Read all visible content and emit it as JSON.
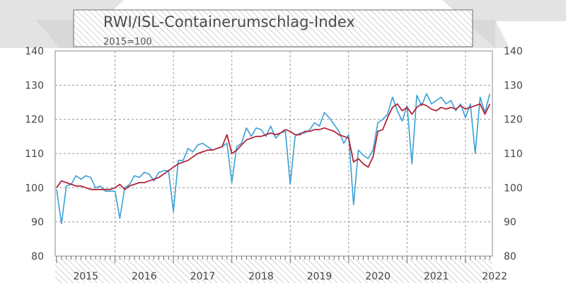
{
  "chart_data": {
    "type": "line",
    "title": "RWI/ISL-Containerumschlag-Index",
    "subtitle": "2015=100",
    "ylim": [
      80,
      140
    ],
    "yticks": [
      80,
      90,
      100,
      110,
      120,
      130,
      140
    ],
    "x_start": "2015-01",
    "year_labels": [
      "2015",
      "2016",
      "2017",
      "2018",
      "2019",
      "2020",
      "2021",
      "2022"
    ],
    "grid": true,
    "colors": {
      "raw": "#3aa0d6",
      "trend": "#b0253a"
    },
    "series": [
      {
        "key": "raw",
        "values": [
          99.5,
          89.5,
          100.5,
          101.0,
          103.5,
          102.5,
          103.5,
          103.0,
          100.0,
          100.5,
          99.0,
          99.0,
          99.0,
          91.0,
          100.0,
          101.0,
          103.5,
          103.0,
          104.5,
          104.0,
          102.0,
          104.5,
          105.0,
          105.0,
          93.0,
          108.0,
          108.0,
          111.5,
          110.5,
          112.5,
          113.0,
          112.0,
          111.0,
          111.5,
          112.0,
          113.0,
          101.5,
          112.0,
          113.0,
          117.5,
          115.0,
          117.5,
          117.0,
          115.0,
          118.0,
          114.5,
          116.0,
          116.5,
          101.0,
          115.0,
          116.0,
          116.0,
          117.0,
          119.0,
          118.0,
          122.0,
          120.5,
          118.5,
          116.5,
          113.0,
          115.5,
          95.0,
          111.0,
          109.5,
          108.5,
          111.0,
          119.0,
          120.0,
          121.5,
          126.5,
          122.5,
          119.5,
          124.0,
          107.0,
          127.0,
          124.0,
          127.5,
          124.5,
          125.5,
          126.5,
          124.5,
          125.5,
          122.5,
          124.5,
          120.5,
          124.5,
          110.0,
          126.5,
          122.0,
          127.5
        ]
      },
      {
        "key": "trend",
        "values": [
          100.0,
          102.0,
          101.5,
          101.0,
          100.5,
          100.5,
          100.0,
          99.5,
          99.5,
          99.5,
          99.5,
          99.5,
          100.0,
          101.0,
          99.5,
          100.5,
          101.0,
          101.5,
          101.5,
          102.0,
          102.5,
          103.0,
          104.0,
          105.0,
          106.0,
          107.0,
          107.5,
          108.0,
          109.0,
          110.0,
          110.5,
          111.0,
          111.0,
          111.5,
          112.0,
          115.5,
          110.0,
          111.0,
          112.5,
          114.0,
          114.5,
          115.0,
          115.0,
          115.5,
          116.0,
          115.5,
          116.0,
          117.0,
          116.5,
          115.5,
          115.5,
          116.5,
          116.5,
          117.0,
          117.0,
          117.5,
          117.0,
          116.5,
          115.5,
          115.0,
          114.5,
          107.5,
          108.5,
          107.0,
          106.0,
          109.0,
          116.5,
          117.0,
          120.5,
          123.5,
          124.5,
          122.5,
          123.5,
          121.5,
          123.5,
          124.5,
          124.0,
          123.0,
          122.5,
          123.5,
          123.0,
          123.5,
          123.0,
          124.0,
          123.0,
          123.5,
          124.0,
          124.5,
          121.5,
          124.5
        ]
      }
    ]
  }
}
